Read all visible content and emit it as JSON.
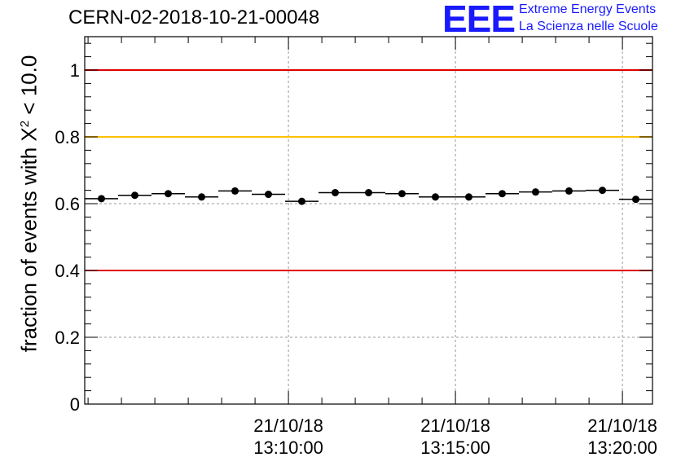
{
  "header": {
    "title": "CERN-02-2018-10-21-00048",
    "logo": {
      "mark": "EEE",
      "line1": "Extreme Energy Events",
      "line2": "La Scienza nelle Scuole"
    }
  },
  "chart_data": {
    "type": "scatter",
    "title": "CERN-02-2018-10-21-00048",
    "xlabel": "",
    "ylabel_prefix": "fraction of events with ",
    "ylabel_symbol": "X",
    "ylabel_sup": "2",
    "ylabel_suffix": " < 10.0",
    "ylim": [
      0,
      1.1
    ],
    "yticks": [
      0,
      0.2,
      0.4,
      0.6,
      0.8,
      1
    ],
    "ytick_labels": [
      "0",
      "0.2",
      "0.4",
      "0.6",
      "0.8",
      "1"
    ],
    "xlim_minutes": [
      3.9,
      20.9
    ],
    "xticks": [
      {
        "minute": 10,
        "date": "21/10/18",
        "time": "13:10:00"
      },
      {
        "minute": 15,
        "date": "21/10/18",
        "time": "13:15:00"
      },
      {
        "minute": 20,
        "date": "21/10/18",
        "time": "13:20:00"
      }
    ],
    "bin_width_minutes": 1,
    "x_minutes": [
      4.4,
      5.4,
      6.4,
      7.4,
      8.4,
      9.4,
      10.4,
      11.4,
      12.4,
      13.4,
      14.4,
      15.4,
      16.4,
      17.4,
      18.4,
      19.4,
      20.4
    ],
    "values": [
      0.615,
      0.625,
      0.63,
      0.62,
      0.638,
      0.628,
      0.607,
      0.633,
      0.633,
      0.63,
      0.62,
      0.62,
      0.63,
      0.635,
      0.638,
      0.64,
      0.613
    ],
    "reference_lines": [
      {
        "value": 1.0,
        "color": "#e00000"
      },
      {
        "value": 0.8,
        "color": "#ffc000"
      },
      {
        "value": 0.4,
        "color": "#e00000"
      }
    ],
    "grid": true
  }
}
